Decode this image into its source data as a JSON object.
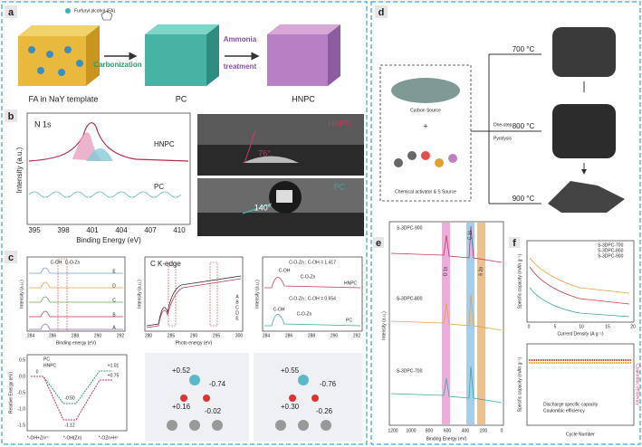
{
  "panels": {
    "a": {
      "label": "a",
      "reagent": "Furfuryl alcohol (FA)",
      "step1": "Carbonization",
      "step2": [
        "Ammonia",
        "treatment"
      ],
      "stages": [
        "FA in NaY template",
        "PC",
        "HNPC"
      ]
    },
    "b": {
      "label": "b",
      "plot": {
        "element": "N 1s",
        "legend": [
          "HNPC",
          "PC"
        ],
        "ylabel": "Intensity (a.u.)",
        "xlabel": "Binding Energy (eV)",
        "xticks": [
          "395",
          "398",
          "401",
          "404",
          "407",
          "410"
        ]
      },
      "photos": [
        {
          "sample": "HNPC",
          "angle": "76°"
        },
        {
          "sample": "PC",
          "angle": "140°"
        }
      ]
    },
    "c": {
      "label": "c",
      "xps": {
        "peaks": [
          "C-OH",
          "C-O-Zn"
        ],
        "samples": [
          "E",
          "D",
          "C",
          "B",
          "A"
        ],
        "ylabel": "Intensity (a.u.)",
        "xlabel": "Binding energy (eV)",
        "xticks": [
          "284",
          "286",
          "288",
          "290",
          "292"
        ]
      },
      "xanes": {
        "title": "C K-edge",
        "samples": [
          "A",
          "B",
          "C",
          "D",
          "E"
        ],
        "ylabel": "Intensity (a.u.)",
        "xlabel": "Photo energy (eV)",
        "xticks": [
          "280",
          "285",
          "290",
          "295",
          "300"
        ]
      },
      "fit": {
        "ratios": [
          "C-O-Zn : C-OH = 1.417",
          "C-O-Zn : C-OH = 0.654"
        ],
        "peaks": [
          "C-OH",
          "C-O-Zn"
        ],
        "samples": [
          "HNPC",
          "PC"
        ],
        "ylabel": "Intensity (a.u.)",
        "xticks": [
          "284",
          "286",
          "288",
          "290",
          "292"
        ]
      },
      "energy": {
        "legend": [
          "PC",
          "HNPC"
        ],
        "ylabel": "Relative Energy (eV)",
        "yticks": [
          "0.5",
          "0.0",
          "-0.5",
          "-1.0",
          "-1.5"
        ],
        "levels": [
          "0",
          "-0.50",
          "-1.12",
          "+0.75",
          "+1.01"
        ],
        "steps": [
          "*-OH+Zn²⁺",
          "*-OH(Zn)",
          "*-OZn+H⁺"
        ]
      },
      "charges": [
        [
          "+0.52",
          "-0.74",
          "+0.16",
          "-0.02"
        ],
        [
          "+0.55",
          "-0.76",
          "+0.30",
          "-0.26"
        ]
      ]
    },
    "d": {
      "label": "d",
      "carbon": "Carbon Source",
      "plus": "+",
      "activator": "Chemical activator & S Source",
      "process": [
        "One-step",
        "Pyrolysis"
      ],
      "temperatures": [
        "700 °C",
        "800 °C",
        "900 °C"
      ]
    },
    "e": {
      "label": "e",
      "samples": [
        "S-3DPC-900",
        "S-3DPC-800",
        "S-3DPC-700"
      ],
      "peaks": [
        "O 1s",
        "C 1s",
        "S 2p"
      ],
      "ylabel": "Intensity (a.u.)",
      "xlabel": "Binding Energy (eV)",
      "xticks": [
        "1200",
        "1000",
        "800",
        "600",
        "400",
        "200",
        "0"
      ]
    },
    "f": {
      "label": "f",
      "rate": {
        "legend": [
          "S-3DPC-700",
          "S-3DPC-800",
          "S-3DPC-900"
        ],
        "ylabel": "Specific capacity (mAh g⁻¹)",
        "xlabel": "Current Density (A g⁻¹)",
        "xticks": [
          "0",
          "5",
          "10",
          "15",
          "20"
        ]
      },
      "cycling": {
        "legend": [
          "Discharge specific capacity",
          "Coulombic efficiency"
        ],
        "ylabel": "Specific capacity (mAh g⁻¹)",
        "y2label": "Coulombic efficiency",
        "xlabel": "Cycle Number"
      }
    }
  }
}
